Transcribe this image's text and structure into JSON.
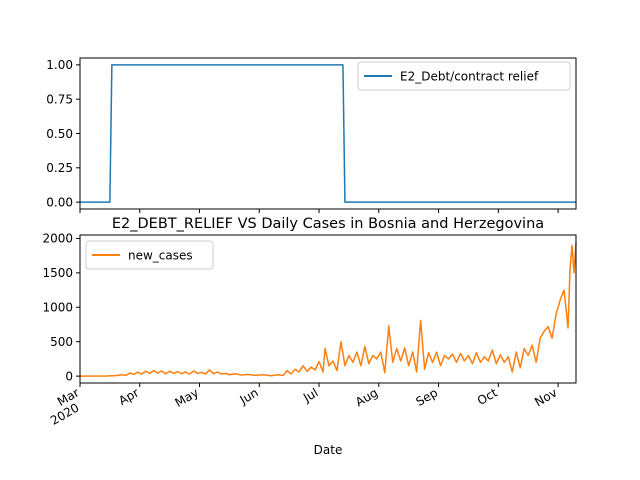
{
  "chart_data": [
    {
      "type": "line",
      "title": "",
      "xlabel": "",
      "ylabel": "",
      "ylim": [
        -0.05,
        1.05
      ],
      "yticks": [
        "0.00",
        "0.25",
        "0.50",
        "0.75",
        "1.00"
      ],
      "ytick_values": [
        0,
        0.25,
        0.5,
        0.75,
        1.0
      ],
      "grid": false,
      "legend": "top-right",
      "series": [
        {
          "name": "E2_Debt/contract relief",
          "color": "#1f77b4",
          "points": [
            [
              "2020-02-26",
              0
            ],
            [
              "2020-03-12",
              0
            ],
            [
              "2020-03-13",
              1
            ],
            [
              "2020-07-07",
              1
            ],
            [
              "2020-07-08",
              0
            ],
            [
              "2020-11-01",
              0
            ]
          ]
        }
      ]
    },
    {
      "type": "line",
      "title": "E2_DEBT_RELIEF VS Daily Cases in Bosnia and Herzegovina",
      "xlabel": "Date",
      "ylabel": "",
      "ylim": [
        -100,
        2050
      ],
      "yticks": [
        "0",
        "500",
        "1000",
        "1500",
        "2000"
      ],
      "ytick_values": [
        0,
        500,
        1000,
        1500,
        2000
      ],
      "xticks": [
        {
          "date": "2020-02-26",
          "label": "Mar",
          "sublabel": "2020"
        },
        {
          "date": "2020-03-27",
          "label": "Apr",
          "sublabel": ""
        },
        {
          "date": "2020-04-26",
          "label": "May",
          "sublabel": ""
        },
        {
          "date": "2020-05-26",
          "label": "Jun",
          "sublabel": ""
        },
        {
          "date": "2020-06-25",
          "label": "Jul",
          "sublabel": ""
        },
        {
          "date": "2020-07-25",
          "label": "Aug",
          "sublabel": ""
        },
        {
          "date": "2020-08-24",
          "label": "Sep",
          "sublabel": ""
        },
        {
          "date": "2020-09-23",
          "label": "Oct",
          "sublabel": ""
        },
        {
          "date": "2020-10-23",
          "label": "Nov",
          "sublabel": ""
        }
      ],
      "grid": false,
      "legend": "top-left",
      "series": [
        {
          "name": "new_cases",
          "color": "#ff7f0e",
          "points": [
            [
              "2020-02-26",
              0
            ],
            [
              "2020-03-10",
              2
            ],
            [
              "2020-03-15",
              8
            ],
            [
              "2020-03-18",
              20
            ],
            [
              "2020-03-20",
              10
            ],
            [
              "2020-03-22",
              45
            ],
            [
              "2020-03-24",
              25
            ],
            [
              "2020-03-26",
              60
            ],
            [
              "2020-03-28",
              30
            ],
            [
              "2020-03-30",
              70
            ],
            [
              "2020-04-01",
              40
            ],
            [
              "2020-04-03",
              80
            ],
            [
              "2020-04-05",
              45
            ],
            [
              "2020-04-07",
              75
            ],
            [
              "2020-04-09",
              35
            ],
            [
              "2020-04-11",
              70
            ],
            [
              "2020-04-13",
              40
            ],
            [
              "2020-04-15",
              65
            ],
            [
              "2020-04-17",
              35
            ],
            [
              "2020-04-19",
              60
            ],
            [
              "2020-04-21",
              30
            ],
            [
              "2020-04-23",
              75
            ],
            [
              "2020-04-25",
              40
            ],
            [
              "2020-04-27",
              55
            ],
            [
              "2020-04-29",
              30
            ],
            [
              "2020-05-01",
              90
            ],
            [
              "2020-05-03",
              35
            ],
            [
              "2020-05-05",
              60
            ],
            [
              "2020-05-07",
              30
            ],
            [
              "2020-05-09",
              40
            ],
            [
              "2020-05-11",
              20
            ],
            [
              "2020-05-14",
              35
            ],
            [
              "2020-05-17",
              15
            ],
            [
              "2020-05-20",
              25
            ],
            [
              "2020-05-24",
              10
            ],
            [
              "2020-05-28",
              20
            ],
            [
              "2020-06-01",
              5
            ],
            [
              "2020-06-04",
              20
            ],
            [
              "2020-06-07",
              10
            ],
            [
              "2020-06-09",
              80
            ],
            [
              "2020-06-11",
              30
            ],
            [
              "2020-06-13",
              100
            ],
            [
              "2020-06-15",
              60
            ],
            [
              "2020-06-17",
              150
            ],
            [
              "2020-06-19",
              70
            ],
            [
              "2020-06-21",
              130
            ],
            [
              "2020-06-23",
              90
            ],
            [
              "2020-06-25",
              210
            ],
            [
              "2020-06-27",
              60
            ],
            [
              "2020-06-28",
              400
            ],
            [
              "2020-06-30",
              150
            ],
            [
              "2020-07-02",
              220
            ],
            [
              "2020-07-04",
              80
            ],
            [
              "2020-07-06",
              500
            ],
            [
              "2020-07-08",
              150
            ],
            [
              "2020-07-10",
              300
            ],
            [
              "2020-07-12",
              200
            ],
            [
              "2020-07-14",
              350
            ],
            [
              "2020-07-16",
              150
            ],
            [
              "2020-07-18",
              430
            ],
            [
              "2020-07-20",
              180
            ],
            [
              "2020-07-22",
              300
            ],
            [
              "2020-07-24",
              250
            ],
            [
              "2020-07-26",
              350
            ],
            [
              "2020-07-28",
              50
            ],
            [
              "2020-07-30",
              730
            ],
            [
              "2020-08-01",
              200
            ],
            [
              "2020-08-03",
              400
            ],
            [
              "2020-08-05",
              220
            ],
            [
              "2020-08-07",
              410
            ],
            [
              "2020-08-09",
              150
            ],
            [
              "2020-08-11",
              350
            ],
            [
              "2020-08-13",
              60
            ],
            [
              "2020-08-15",
              810
            ],
            [
              "2020-08-17",
              100
            ],
            [
              "2020-08-19",
              340
            ],
            [
              "2020-08-21",
              200
            ],
            [
              "2020-08-23",
              350
            ],
            [
              "2020-08-25",
              150
            ],
            [
              "2020-08-27",
              300
            ],
            [
              "2020-08-29",
              250
            ],
            [
              "2020-08-31",
              320
            ],
            [
              "2020-09-02",
              200
            ],
            [
              "2020-09-04",
              330
            ],
            [
              "2020-09-06",
              220
            ],
            [
              "2020-09-08",
              300
            ],
            [
              "2020-09-10",
              180
            ],
            [
              "2020-09-12",
              340
            ],
            [
              "2020-09-14",
              200
            ],
            [
              "2020-09-16",
              280
            ],
            [
              "2020-09-18",
              220
            ],
            [
              "2020-09-20",
              380
            ],
            [
              "2020-09-22",
              180
            ],
            [
              "2020-09-24",
              310
            ],
            [
              "2020-09-26",
              200
            ],
            [
              "2020-09-28",
              280
            ],
            [
              "2020-09-30",
              60
            ],
            [
              "2020-10-02",
              350
            ],
            [
              "2020-10-04",
              120
            ],
            [
              "2020-10-06",
              400
            ],
            [
              "2020-10-08",
              300
            ],
            [
              "2020-10-10",
              450
            ],
            [
              "2020-10-12",
              200
            ],
            [
              "2020-10-14",
              550
            ],
            [
              "2020-10-16",
              650
            ],
            [
              "2020-10-18",
              720
            ],
            [
              "2020-10-20",
              550
            ],
            [
              "2020-10-22",
              900
            ],
            [
              "2020-10-24",
              1100
            ],
            [
              "2020-10-26",
              1250
            ],
            [
              "2020-10-28",
              700
            ],
            [
              "2020-10-29",
              1550
            ],
            [
              "2020-10-30",
              1900
            ],
            [
              "2020-10-31",
              1500
            ],
            [
              "2020-11-01",
              1950
            ]
          ]
        }
      ]
    }
  ]
}
